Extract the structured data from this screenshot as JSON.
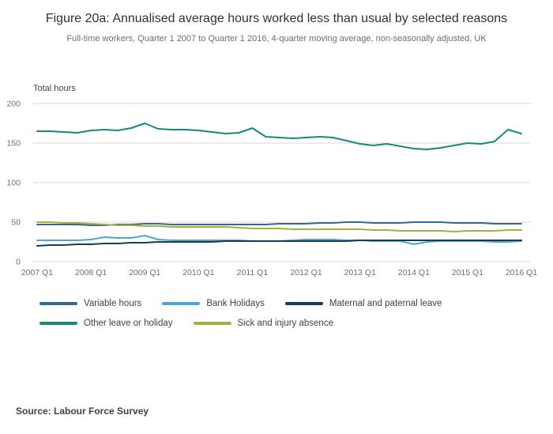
{
  "header": {
    "title": "Figure 20a: Annualised average hours worked less than usual by selected reasons",
    "subtitle": "Full-time workers, Quarter 1 2007 to Quarter 1 2016, 4-quarter moving average, non-seasonally adjusted, UK"
  },
  "source": "Source: Labour Force Survey",
  "chart_data": {
    "type": "line",
    "title": "Figure 20a: Annualised average hours worked less than usual by selected reasons",
    "y_axis_title": "Total hours",
    "xlabel": "",
    "ylabel": "Total hours",
    "ylim": [
      0,
      200
    ],
    "y_ticks": [
      0,
      50,
      100,
      150,
      200
    ],
    "x_tick_labels": [
      "2007 Q1",
      "2008 Q1",
      "2009 Q1",
      "2010 Q1",
      "2011 Q1",
      "2012 Q1",
      "2013 Q1",
      "2014 Q1",
      "2015 Q1",
      "2016 Q1"
    ],
    "x_tick_every": 4,
    "grid": true,
    "legend_position": "bottom",
    "grid_color": "#d9d9d9",
    "tick_color": "#6e6e6e",
    "series": [
      {
        "name": "Variable hours",
        "color": "#36678D",
        "values": [
          47,
          47,
          47,
          47,
          46,
          46,
          47,
          47,
          48,
          48,
          47,
          47,
          47,
          47,
          47,
          47,
          47,
          47,
          48,
          48,
          48,
          49,
          49,
          50,
          50,
          49,
          49,
          49,
          50,
          50,
          50,
          49,
          49,
          49,
          48,
          48,
          48
        ]
      },
      {
        "name": "Bank Holidays",
        "color": "#51A5D3",
        "values": [
          27,
          27,
          27,
          27,
          28,
          31,
          30,
          30,
          33,
          28,
          27,
          27,
          27,
          27,
          27,
          27,
          26,
          26,
          26,
          27,
          28,
          28,
          28,
          27,
          27,
          26,
          26,
          26,
          22,
          25,
          26,
          26,
          26,
          26,
          25,
          25,
          26
        ]
      },
      {
        "name": "Maternal and paternal leave",
        "color": "#1A3C51",
        "values": [
          20,
          21,
          21,
          22,
          22,
          23,
          23,
          24,
          24,
          25,
          25,
          25,
          25,
          25,
          26,
          26,
          26,
          26,
          26,
          26,
          26,
          26,
          26,
          26,
          27,
          27,
          27,
          27,
          27,
          27,
          27,
          27,
          27,
          27,
          27,
          27,
          27
        ]
      },
      {
        "name": "Other leave or holiday",
        "color": "#17897C",
        "values": [
          165,
          165,
          164,
          163,
          166,
          167,
          166,
          169,
          175,
          168,
          167,
          167,
          166,
          164,
          162,
          163,
          169,
          158,
          157,
          156,
          157,
          158,
          157,
          153,
          149,
          147,
          149,
          146,
          143,
          142,
          144,
          147,
          150,
          149,
          152,
          167,
          162
        ]
      },
      {
        "name": "Sick and injury absence",
        "color": "#A4B13F",
        "values": [
          50,
          50,
          49,
          49,
          48,
          47,
          46,
          46,
          45,
          45,
          44,
          44,
          44,
          44,
          44,
          43,
          42,
          42,
          42,
          41,
          41,
          41,
          41,
          41,
          41,
          40,
          40,
          39,
          39,
          39,
          39,
          38,
          39,
          39,
          39,
          40,
          40
        ]
      }
    ]
  }
}
